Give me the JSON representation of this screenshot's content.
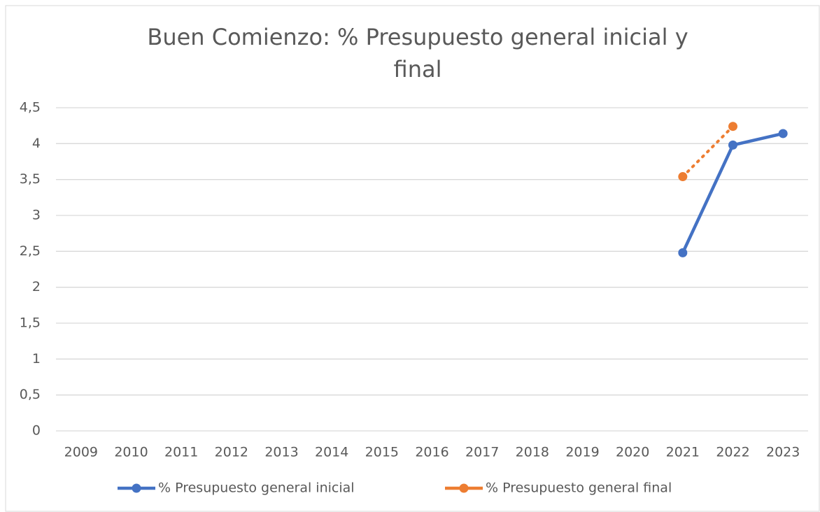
{
  "chart_data": {
    "type": "line",
    "title": [
      "Buen Comienzo: % Presupuesto general inicial y",
      "final"
    ],
    "categories": [
      "2009",
      "2010",
      "2011",
      "2012",
      "2013",
      "2014",
      "2015",
      "2016",
      "2017",
      "2018",
      "2019",
      "2020",
      "2021",
      "2022",
      "2023"
    ],
    "series": [
      {
        "name": "% Presupuesto general inicial",
        "color": "#4472c4",
        "style": "solid",
        "values": [
          null,
          null,
          null,
          null,
          null,
          null,
          null,
          null,
          null,
          null,
          null,
          null,
          2.48,
          3.98,
          4.14
        ]
      },
      {
        "name": "% Presupuesto general final",
        "color": "#ed7d31",
        "style": "dotted",
        "values": [
          null,
          null,
          null,
          null,
          null,
          null,
          null,
          null,
          null,
          null,
          null,
          null,
          3.54,
          4.24,
          null
        ]
      }
    ],
    "ylim": [
      0,
      4.5
    ],
    "yticks": [
      0,
      {
        "value": 0.5,
        "label": "0,5"
      },
      1,
      {
        "value": 1.5,
        "label": "1,5"
      },
      2,
      {
        "value": 2.5,
        "label": "2,5"
      },
      3,
      {
        "value": 3.5,
        "label": "3,5"
      },
      4,
      {
        "value": 4.5,
        "label": "4,5"
      }
    ],
    "grid": true,
    "legend": "bottom"
  }
}
